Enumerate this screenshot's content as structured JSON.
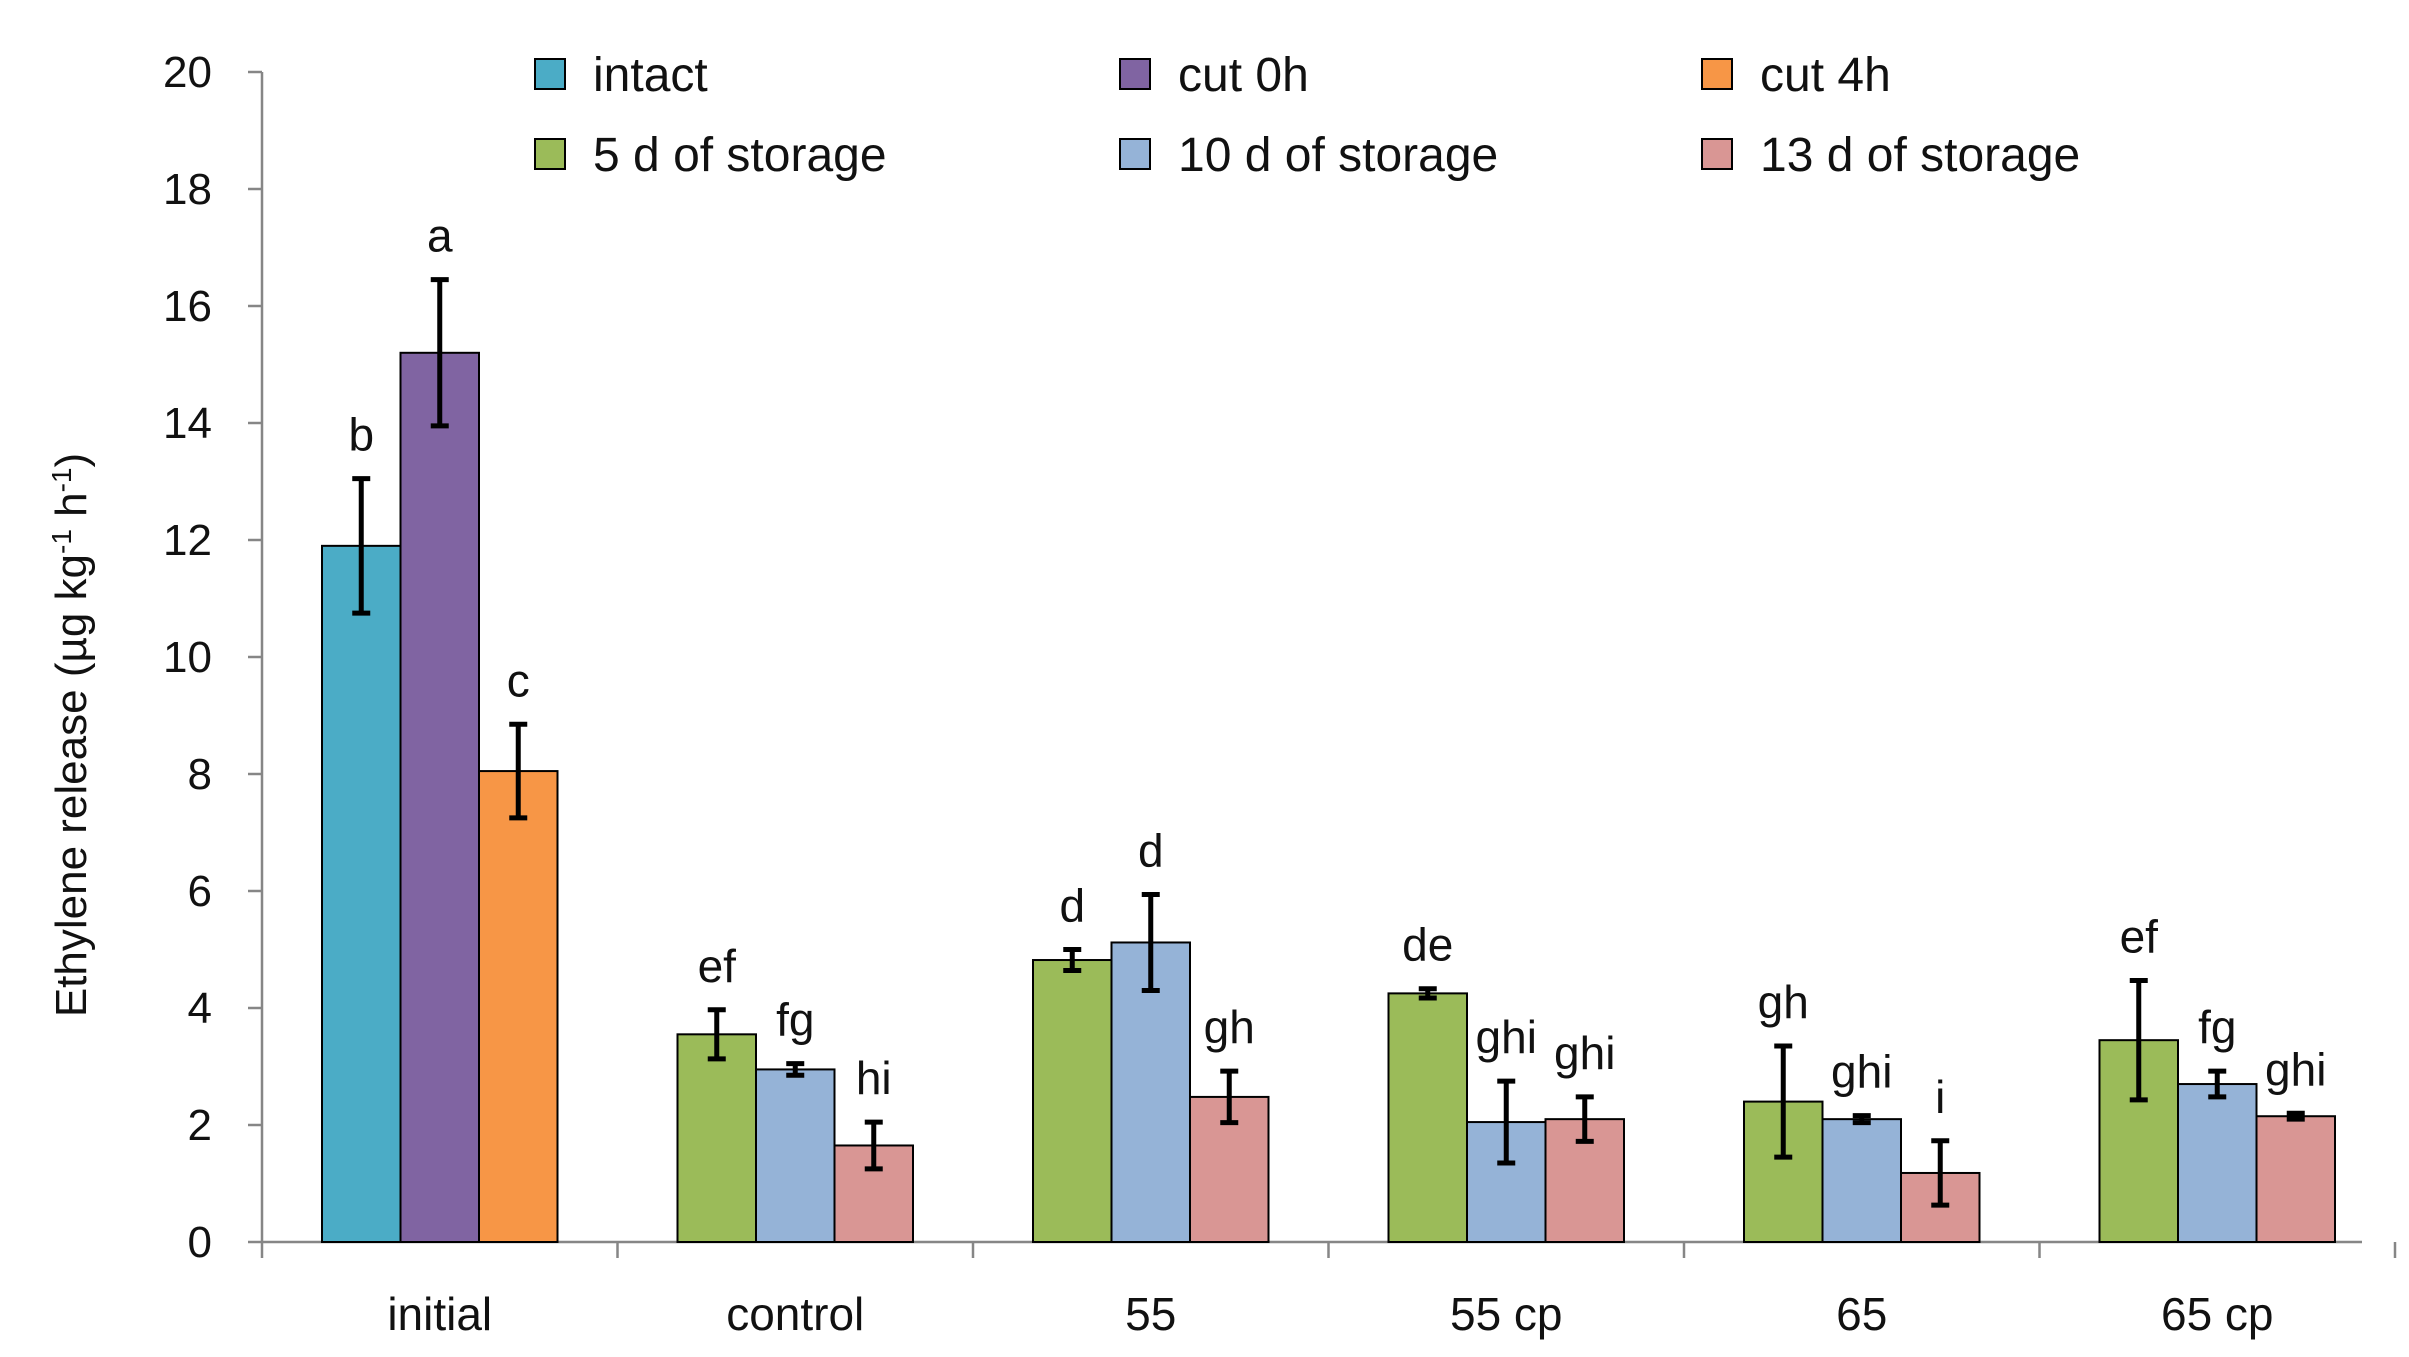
{
  "chart_data": {
    "type": "bar",
    "title": "",
    "xlabel": "",
    "ylabel": "Ethylene release (µg kg",
    "ylabel_unit_sup1": "-1",
    "ylabel_unit_mid": " h",
    "ylabel_unit_sup2": "-1",
    "ylabel_close": ")",
    "ylim": [
      0,
      20
    ],
    "yticks": [
      0,
      2,
      4,
      6,
      8,
      10,
      12,
      14,
      16,
      18,
      20
    ],
    "grid": false,
    "legend_position": "top",
    "categories": [
      "initial",
      "control",
      "55",
      "55 cp",
      "65",
      "65 cp"
    ],
    "series": [
      {
        "name": "intact",
        "color": "#4bacc6"
      },
      {
        "name": "cut 0h",
        "color": "#8064a2"
      },
      {
        "name": "cut 4h",
        "color": "#f79646"
      },
      {
        "name": "5 d of storage",
        "color": "#9bbb59"
      },
      {
        "name": "10 d of storage",
        "color": "#95b3d7"
      },
      {
        "name": "13 d of storage",
        "color": "#d99694"
      }
    ],
    "legend_order": [
      0,
      1,
      2,
      3,
      4,
      5
    ],
    "groups": [
      {
        "category": "initial",
        "bars": [
          {
            "series": 0,
            "value": 11.9,
            "error": 1.15,
            "label": "b"
          },
          {
            "series": 1,
            "value": 15.2,
            "error": 1.25,
            "label": "a"
          },
          {
            "series": 2,
            "value": 8.05,
            "error": 0.8,
            "label": "c"
          }
        ]
      },
      {
        "category": "control",
        "bars": [
          {
            "series": 3,
            "value": 3.55,
            "error": 0.42,
            "label": "ef"
          },
          {
            "series": 4,
            "value": 2.95,
            "error": 0.1,
            "label": "fg"
          },
          {
            "series": 5,
            "value": 1.65,
            "error": 0.4,
            "label": "hi"
          }
        ]
      },
      {
        "category": "55",
        "bars": [
          {
            "series": 3,
            "value": 4.82,
            "error": 0.18,
            "label": "d"
          },
          {
            "series": 4,
            "value": 5.12,
            "error": 0.82,
            "label": "d"
          },
          {
            "series": 5,
            "value": 2.48,
            "error": 0.44,
            "label": "gh"
          }
        ]
      },
      {
        "category": "55 cp",
        "bars": [
          {
            "series": 3,
            "value": 4.25,
            "error": 0.08,
            "label": "de"
          },
          {
            "series": 4,
            "value": 2.05,
            "error": 0.7,
            "label": "ghi"
          },
          {
            "series": 5,
            "value": 2.1,
            "error": 0.38,
            "label": "ghi"
          }
        ]
      },
      {
        "category": "65",
        "bars": [
          {
            "series": 3,
            "value": 2.4,
            "error": 0.95,
            "label": "gh"
          },
          {
            "series": 4,
            "value": 2.1,
            "error": 0.06,
            "label": "ghi"
          },
          {
            "series": 5,
            "value": 1.18,
            "error": 0.55,
            "label": "i"
          }
        ]
      },
      {
        "category": "65 cp",
        "bars": [
          {
            "series": 3,
            "value": 3.45,
            "error": 1.02,
            "label": "ef"
          },
          {
            "series": 4,
            "value": 2.7,
            "error": 0.22,
            "label": "fg"
          },
          {
            "series": 5,
            "value": 2.15,
            "error": 0.05,
            "label": "ghi"
          }
        ]
      }
    ]
  }
}
